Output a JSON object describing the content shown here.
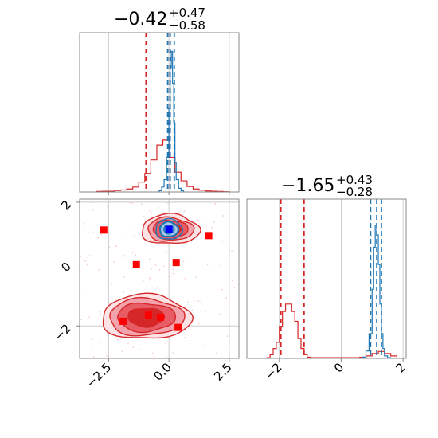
{
  "chart_data": {
    "type": "corner",
    "titles": [
      {
        "value": "−0.42",
        "plus": "+0.47",
        "minus": "−0.58"
      },
      {
        "value": "−1.65",
        "plus": "+0.43",
        "minus": "−0.28"
      }
    ],
    "x_ticks_param1": [
      {
        "value": -2.5,
        "label": "−2.5"
      },
      {
        "value": 0.0,
        "label": "0.0"
      },
      {
        "value": 2.5,
        "label": "2.5"
      }
    ],
    "y_ticks_param2": [
      {
        "value": 2,
        "label": "2"
      },
      {
        "value": 0,
        "label": "0"
      },
      {
        "value": -2,
        "label": "−2"
      }
    ],
    "x_ticks_param2": [
      {
        "value": -2,
        "label": "−2"
      },
      {
        "value": 0,
        "label": "0"
      },
      {
        "value": 2,
        "label": "2"
      }
    ],
    "xlim_param1": [
      -3.7,
      2.9
    ],
    "ylim_param2": [
      -3.05,
      2.1
    ],
    "xlim_param2": [
      -3.05,
      2.1
    ],
    "colors": {
      "red": "#d62728",
      "blue": "#1f77b4",
      "marker": "#ff0000",
      "truth": "#0000ff"
    },
    "quantile_lines_param1": {
      "red": [
        -0.95,
        0.05
      ],
      "blue": [
        -0.05,
        0.05,
        0.22
      ]
    },
    "quantile_lines_param2": {
      "red": [
        -1.95,
        -1.2
      ],
      "blue": [
        0.95,
        1.15,
        1.3
      ]
    },
    "hist_param1_red": {
      "edges": [
        -3.0,
        -2.75,
        -2.5,
        -2.25,
        -2.0,
        -1.75,
        -1.5,
        -1.25,
        -1.0,
        -0.75,
        -0.5,
        -0.25,
        0.0,
        0.25,
        0.5,
        0.75,
        1.0,
        1.25,
        1.5,
        1.75,
        2.0,
        2.25,
        2.5
      ],
      "counts": [
        0.2,
        0.3,
        0.3,
        0.6,
        0.8,
        1.2,
        2.0,
        4.0,
        7.5,
        13.0,
        19.0,
        21.0,
        14.0,
        8.0,
        4.5,
        2.2,
        1.2,
        0.7,
        0.4,
        0.3,
        0.2,
        0.1
      ]
    },
    "hist_param1_blue": {
      "edges": [
        -0.4,
        -0.3,
        -0.2,
        -0.1,
        0.0,
        0.05,
        0.1,
        0.15,
        0.2,
        0.25,
        0.3,
        0.4,
        0.5,
        0.6
      ],
      "counts": [
        0.5,
        2,
        5,
        14,
        34,
        50,
        57,
        44,
        28,
        12,
        5,
        1.5,
        0.5
      ]
    },
    "hist_param2_red": {
      "edges": [
        -2.4,
        -2.3,
        -2.2,
        -2.1,
        -2.0,
        -1.9,
        -1.8,
        -1.7,
        -1.6,
        -1.5,
        -1.4,
        -1.3,
        -1.2,
        -1.1,
        -1.0,
        0.6,
        0.8,
        1.0,
        1.2,
        1.4,
        1.6,
        1.8
      ],
      "counts": [
        0.3,
        1.5,
        4,
        6.5,
        13,
        19,
        22,
        22,
        19,
        15,
        8,
        4,
        1.5,
        0.5,
        0.3,
        0.5,
        1.0,
        2.0,
        2.8,
        2.0,
        1.0
      ]
    },
    "hist_param2_blue": {
      "edges": [
        0.7,
        0.8,
        0.9,
        1.0,
        1.05,
        1.1,
        1.15,
        1.2,
        1.25,
        1.3,
        1.35,
        1.4,
        1.5,
        1.6
      ],
      "counts": [
        0.5,
        3,
        10,
        28,
        45,
        54,
        50,
        38,
        22,
        10,
        4,
        1,
        0.3
      ]
    },
    "hist_ymax": 60,
    "contours_red_upper": {
      "cx": 0.05,
      "cy": 1.12,
      "rx": [
        1.2,
        0.95,
        0.72,
        0.45
      ],
      "ry": [
        0.48,
        0.38,
        0.3,
        0.18
      ]
    },
    "contours_red_lower": {
      "cx": -0.95,
      "cy": -1.72,
      "rx": [
        1.85,
        1.55,
        1.2,
        0.75
      ],
      "ry": [
        0.72,
        0.6,
        0.46,
        0.3
      ]
    },
    "contours_blue": {
      "cx": 0.0,
      "cy": 1.12,
      "rx": [
        0.55,
        0.38,
        0.22
      ],
      "ry": [
        0.33,
        0.24,
        0.14
      ]
    },
    "markers": [
      {
        "x": -2.7,
        "y": 1.1
      },
      {
        "x": 1.65,
        "y": 0.92
      },
      {
        "x": -1.35,
        "y": -0.02
      },
      {
        "x": 0.3,
        "y": 0.05
      },
      {
        "x": -1.9,
        "y": -1.85
      },
      {
        "x": -0.85,
        "y": -1.65
      },
      {
        "x": -0.35,
        "y": -1.72
      },
      {
        "x": 0.38,
        "y": -2.05
      }
    ],
    "truth_point": {
      "x": 0.0,
      "y": 1.12
    }
  }
}
